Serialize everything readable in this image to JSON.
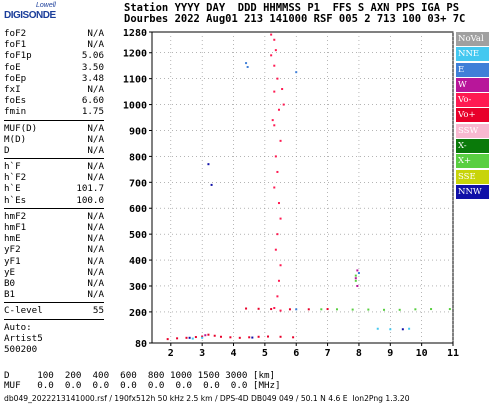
{
  "logo": {
    "line1": "Lowell",
    "line2": "DIGISONDE"
  },
  "header": {
    "line1": "Station YYYY DAY  DDD HHMMSS P1  FFS S AXN PPS IGA PS",
    "line2": "Dourbes 2022 Aug01 213 141000 RSF 005 2 713 100 03+ 7C"
  },
  "params_group1": [
    {
      "label": "foF2",
      "value": "N/A"
    },
    {
      "label": "foF1",
      "value": "N/A"
    },
    {
      "label": "foF1p",
      "value": "5.06"
    },
    {
      "label": "foE",
      "value": "3.50"
    },
    {
      "label": "foEp",
      "value": "3.48"
    },
    {
      "label": "fxI",
      "value": "N/A"
    },
    {
      "label": "foEs",
      "value": "6.60"
    },
    {
      "label": "fmin",
      "value": "1.75"
    }
  ],
  "params_group2": [
    {
      "label": "MUF(D)",
      "value": "N/A"
    },
    {
      "label": "M(D)",
      "value": "N/A"
    },
    {
      "label": "D",
      "value": "N/A"
    }
  ],
  "params_group3": [
    {
      "label": "h`F",
      "value": "N/A"
    },
    {
      "label": "h`F2",
      "value": "N/A"
    },
    {
      "label": "h`E",
      "value": "101.7"
    },
    {
      "label": "h`Es",
      "value": "100.0"
    }
  ],
  "params_group4": [
    {
      "label": "hmF2",
      "value": "N/A"
    },
    {
      "label": "hmF1",
      "value": "N/A"
    },
    {
      "label": "hmE",
      "value": "N/A"
    },
    {
      "label": "yF2",
      "value": "N/A"
    },
    {
      "label": "yF1",
      "value": "N/A"
    },
    {
      "label": "yE",
      "value": "N/A"
    },
    {
      "label": "B0",
      "value": "N/A"
    },
    {
      "label": "B1",
      "value": "N/A"
    }
  ],
  "clevel": {
    "label": "C-level",
    "value": "55"
  },
  "auto": {
    "line1": "Auto:",
    "line2": "Artist5",
    "line3": "500200"
  },
  "legend": [
    {
      "label": "NoVal",
      "color": "#a0a0a0"
    },
    {
      "label": "NNE",
      "color": "#44c8f0"
    },
    {
      "label": "E",
      "color": "#3f7fd8"
    },
    {
      "label": "W",
      "color": "#b8169a"
    },
    {
      "label": "Vo-",
      "color": "#ff1a52"
    },
    {
      "label": "Vo+",
      "color": "#e8002a"
    },
    {
      "label": "SSW",
      "color": "#f8b8d0"
    },
    {
      "label": "X-",
      "color": "#0a7a0a"
    },
    {
      "label": "X+",
      "color": "#59cf41"
    },
    {
      "label": "SSE",
      "color": "#c8d40a"
    },
    {
      "label": "NNW",
      "color": "#1010a8"
    }
  ],
  "footer": {
    "d_line": "D     100  200  400  600  800 1000 1500 3000 [km]",
    "muf_line": "MUF   0.0  0.0  0.0  0.0  0.0  0.0  0.0  0.0 [MHz]",
    "info_line": "db049_2022213141000.rsf / 190fx512h 50 kHz 2.5 km / DPS-4D DB049 049 / 50.1 N 4.6 E  Ion2Png 1.3.20"
  },
  "chart_data": {
    "type": "scatter",
    "xlabel": "",
    "ylabel": "",
    "xlim": [
      1.4,
      11
    ],
    "ylim": [
      80,
      1280
    ],
    "xticks": [
      2,
      3,
      4,
      5,
      6,
      7,
      8,
      9,
      10,
      11
    ],
    "yticks": [
      80,
      200,
      300,
      400,
      500,
      600,
      700,
      800,
      900,
      1000,
      1100,
      1200,
      1280
    ],
    "grid": true,
    "series": [
      {
        "name": "Vo-",
        "color": "#ff1a52",
        "points": [
          [
            5.2,
            1270
          ],
          [
            5.3,
            1250
          ],
          [
            5.35,
            1210
          ],
          [
            5.3,
            1150
          ],
          [
            5.4,
            1100
          ],
          [
            5.3,
            1050
          ],
          [
            5.45,
            980
          ],
          [
            5.3,
            920
          ],
          [
            5.5,
            860
          ],
          [
            5.35,
            800
          ],
          [
            5.4,
            740
          ],
          [
            5.3,
            680
          ],
          [
            5.45,
            620
          ],
          [
            5.5,
            560
          ],
          [
            5.4,
            500
          ],
          [
            5.35,
            440
          ],
          [
            5.5,
            380
          ],
          [
            5.45,
            320
          ],
          [
            5.4,
            260
          ],
          [
            5.3,
            215
          ],
          [
            5.5,
            205
          ],
          [
            5.2,
            1190
          ],
          [
            5.55,
            1060
          ],
          [
            5.25,
            940
          ],
          [
            5.6,
            1000
          ]
        ]
      },
      {
        "name": "Vo+",
        "color": "#e8002a",
        "points": [
          [
            1.9,
            95
          ],
          [
            2.2,
            98
          ],
          [
            2.5,
            100
          ],
          [
            2.8,
            103
          ],
          [
            3.0,
            105
          ],
          [
            3.2,
            112
          ],
          [
            3.4,
            108
          ],
          [
            3.6,
            104
          ],
          [
            3.9,
            102
          ],
          [
            4.2,
            100
          ],
          [
            4.5,
            102
          ],
          [
            4.8,
            104
          ],
          [
            5.1,
            105
          ],
          [
            5.5,
            104
          ],
          [
            5.9,
            102
          ],
          [
            4.4,
            213
          ],
          [
            4.8,
            212
          ],
          [
            5.2,
            211
          ],
          [
            5.8,
            210
          ],
          [
            6.4,
            210
          ],
          [
            7.0,
            211
          ]
        ]
      },
      {
        "name": "X+",
        "color": "#59cf41",
        "points": [
          [
            6.8,
            210
          ],
          [
            7.3,
            210
          ],
          [
            7.8,
            209
          ],
          [
            8.3,
            209
          ],
          [
            8.8,
            208
          ],
          [
            9.3,
            208
          ],
          [
            9.8,
            210
          ],
          [
            10.3,
            211
          ],
          [
            10.9,
            211
          ],
          [
            7.9,
            320
          ],
          [
            7.9,
            340
          ]
        ]
      },
      {
        "name": "NNE",
        "color": "#44c8f0",
        "points": [
          [
            8.6,
            135
          ],
          [
            9.0,
            133
          ],
          [
            9.6,
            135
          ],
          [
            3.0,
            100
          ],
          [
            2.7,
            97
          ]
        ]
      },
      {
        "name": "E",
        "color": "#3f7fd8",
        "points": [
          [
            4.4,
            1160
          ],
          [
            4.45,
            1145
          ],
          [
            6.0,
            1125
          ],
          [
            6.0,
            210
          ],
          [
            8.0,
            350
          ]
        ]
      },
      {
        "name": "W",
        "color": "#b8169a",
        "points": [
          [
            7.95,
            360
          ],
          [
            7.9,
            330
          ],
          [
            7.95,
            300
          ],
          [
            3.1,
            110
          ]
        ]
      },
      {
        "name": "NNW",
        "color": "#1010a8",
        "points": [
          [
            3.2,
            770
          ],
          [
            3.3,
            690
          ],
          [
            2.6,
            100
          ],
          [
            4.6,
            101
          ],
          [
            9.4,
            133
          ]
        ]
      }
    ]
  }
}
